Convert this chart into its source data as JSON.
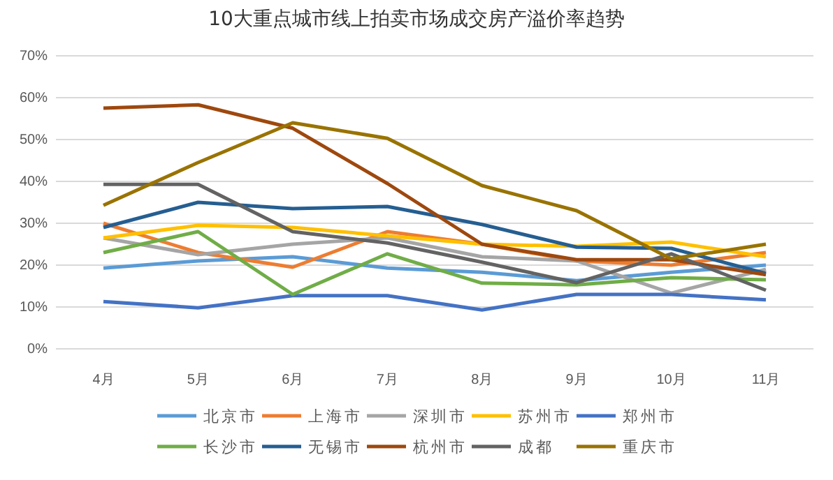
{
  "chart_data": {
    "type": "line",
    "title": "10大重点城市线上拍卖市场成交房产溢价率趋势",
    "categories": [
      "4月",
      "5月",
      "6月",
      "7月",
      "8月",
      "9月",
      "10月",
      "11月"
    ],
    "ylim": [
      0,
      70
    ],
    "yticks": [
      {
        "value": 0,
        "label": "0%"
      },
      {
        "value": 10,
        "label": "10%"
      },
      {
        "value": 20,
        "label": "20%"
      },
      {
        "value": 30,
        "label": "30%"
      },
      {
        "value": 40,
        "label": "40%"
      },
      {
        "value": 50,
        "label": "50%"
      },
      {
        "value": 60,
        "label": "60%"
      },
      {
        "value": 70,
        "label": "70%"
      }
    ],
    "grid": "y",
    "legend": "bottom",
    "marker": "none",
    "line_style": "solid",
    "series": [
      {
        "name": "北京市",
        "color": "#5b9bd5",
        "values": [
          19.3,
          21,
          22,
          19.3,
          18.3,
          16.3,
          18.3,
          20
        ]
      },
      {
        "name": "上海市",
        "color": "#ed7d31",
        "values": [
          30,
          23,
          19.5,
          28,
          25,
          21,
          20,
          23
        ]
      },
      {
        "name": "深圳市",
        "color": "#a5a5a5",
        "values": [
          26.5,
          22.5,
          25,
          26.5,
          22,
          21,
          13.3,
          19
        ]
      },
      {
        "name": "苏州市",
        "color": "#ffc000",
        "values": [
          26.5,
          29.5,
          29,
          27,
          25,
          24.5,
          25.5,
          22
        ]
      },
      {
        "name": "郑州市",
        "color": "#4472c4",
        "values": [
          11.3,
          9.8,
          12.7,
          12.7,
          9.3,
          13,
          13,
          11.7
        ]
      },
      {
        "name": "长沙市",
        "color": "#70ad47",
        "values": [
          23,
          28,
          13,
          22.7,
          15.7,
          15.3,
          17,
          16.5
        ]
      },
      {
        "name": "无锡市",
        "color": "#255e91",
        "values": [
          29,
          35,
          33.5,
          34,
          29.7,
          24.3,
          24,
          18
        ]
      },
      {
        "name": "杭州市",
        "color": "#9e480e",
        "values": [
          57.5,
          58.3,
          52.7,
          39.5,
          25,
          21.3,
          21.3,
          17.7
        ]
      },
      {
        "name": "成都",
        "color": "#636363",
        "values": [
          39.3,
          39.3,
          28,
          25.3,
          20.7,
          15.8,
          22.7,
          14
        ]
      },
      {
        "name": "重庆市",
        "color": "#997300",
        "values": [
          34.3,
          44.5,
          54,
          50.3,
          39,
          33,
          21.5,
          25
        ]
      }
    ]
  }
}
